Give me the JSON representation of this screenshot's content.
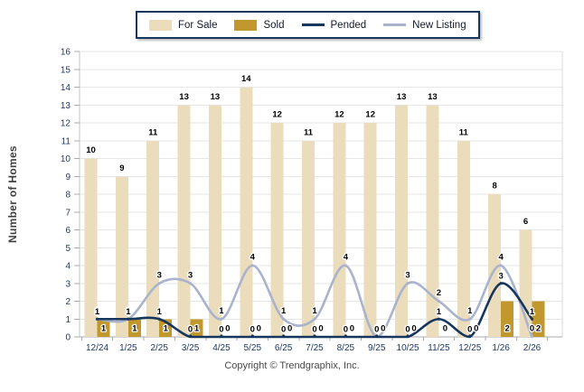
{
  "legend": {
    "items": [
      {
        "label": "For Sale",
        "swatch": "bar",
        "color": "#EBDDBC"
      },
      {
        "label": "Sold",
        "swatch": "bar",
        "color": "#C1982D"
      },
      {
        "label": "Pended",
        "swatch": "line",
        "color": "#17365D"
      },
      {
        "label": "New Listing",
        "swatch": "line",
        "color": "#A9B3CB"
      }
    ]
  },
  "y_axis": {
    "title": "Number of Homes",
    "min": 0,
    "max": 16,
    "step": 1
  },
  "footer": {
    "text": "Copyright © Trendgraphix, Inc."
  },
  "chart_data": {
    "type": "combo",
    "title": "",
    "xlabel": "",
    "ylabel": "Number of Homes",
    "ylim": [
      0,
      16
    ],
    "grid": true,
    "legend_position": "top",
    "categories": [
      "12/24",
      "1/25",
      "2/25",
      "3/25",
      "4/25",
      "5/25",
      "6/25",
      "7/25",
      "8/25",
      "9/25",
      "10/25",
      "11/25",
      "12/25",
      "1/26",
      "2/26"
    ],
    "series": [
      {
        "name": "For Sale",
        "type": "bar",
        "color": "#EBDDBC",
        "values": [
          10,
          9,
          11,
          13,
          13,
          14,
          12,
          11,
          12,
          12,
          13,
          13,
          11,
          8,
          6
        ]
      },
      {
        "name": "Sold",
        "type": "bar",
        "color": "#C1982D",
        "values": [
          1,
          1,
          1,
          1,
          0,
          0,
          0,
          0,
          0,
          0,
          0,
          0,
          0,
          2,
          2
        ]
      },
      {
        "name": "Pended",
        "type": "line",
        "color": "#17365D",
        "values": [
          1,
          1,
          1,
          0,
          0,
          0,
          0,
          0,
          0,
          0,
          0,
          1,
          0,
          3,
          1
        ]
      },
      {
        "name": "New Listing",
        "type": "line",
        "color": "#A9B3CB",
        "values": [
          1,
          1,
          3,
          3,
          1,
          4,
          1,
          1,
          4,
          0,
          3,
          2,
          1,
          4,
          0
        ]
      }
    ]
  }
}
